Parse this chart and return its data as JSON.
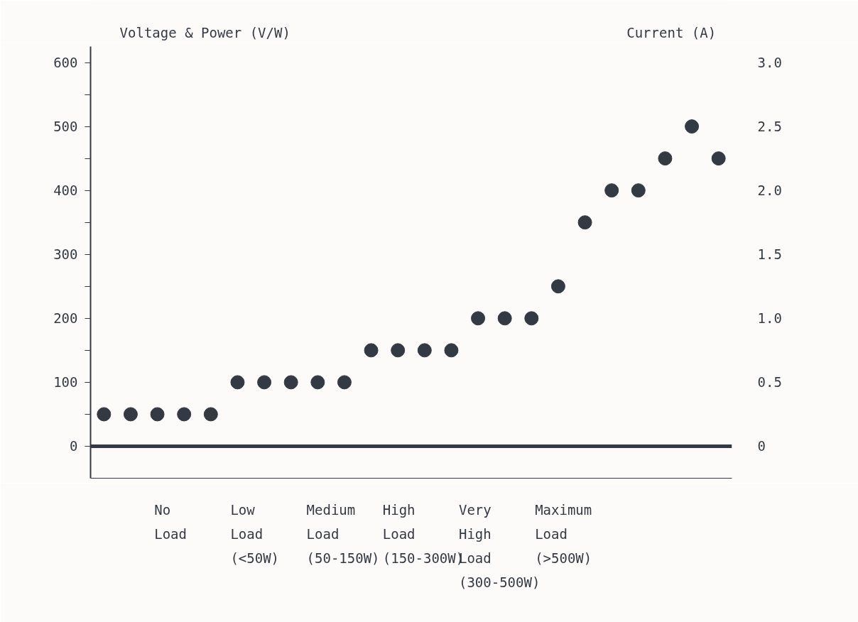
{
  "chart_data": {
    "type": "scatter",
    "ylabel": "Voltage & Power (V/W)",
    "y2label": "Current (A)",
    "annotations": [
      "No\nLoad",
      "Low\nLoad\n(<50W)",
      "Medium\nLoad\n(50-150W)",
      "High\nLoad\n(150-300W)",
      "Very\nHigh\nLoad\n(300-500W)",
      "Maximum\nLoad\n(>500W)"
    ],
    "categories": [
      null,
      null,
      null,
      null,
      null,
      null,
      null,
      null,
      null,
      null,
      null,
      null,
      null,
      null,
      null,
      null,
      null,
      null,
      null,
      null,
      null,
      null,
      null,
      null
    ],
    "tick_labels": "y",
    "ylim": [
      -50,
      625
    ],
    "yticks": [
      0,
      {
        "value": 50,
        "label": null
      },
      100,
      {
        "value": 150,
        "label": null
      },
      200,
      {
        "value": 250,
        "label": null
      },
      300,
      {
        "value": 350,
        "label": null
      },
      400,
      {
        "value": 450,
        "label": null
      },
      500,
      {
        "value": 550,
        "label": null
      },
      600
    ],
    "y2lim": [
      -0.25,
      3.125
    ],
    "y2ticks": [
      0,
      0.5,
      {
        "value": 1,
        "label": "1.0"
      },
      1.5,
      {
        "value": 2,
        "label": "2.0"
      },
      2.5,
      {
        "value": 3,
        "label": "3.0"
      }
    ],
    "marker": "circle",
    "grid": false,
    "ref_lines": [
      {
        "axis": "y",
        "value": 0,
        "color": "#343a44"
      }
    ],
    "series": [
      {
        "color": "#343a44",
        "values": [
          50,
          50,
          50,
          50,
          50,
          100,
          100,
          100,
          100,
          100,
          150,
          150,
          150,
          150,
          200,
          200,
          200,
          250,
          350,
          400,
          400,
          450,
          500,
          450
        ]
      }
    ]
  }
}
